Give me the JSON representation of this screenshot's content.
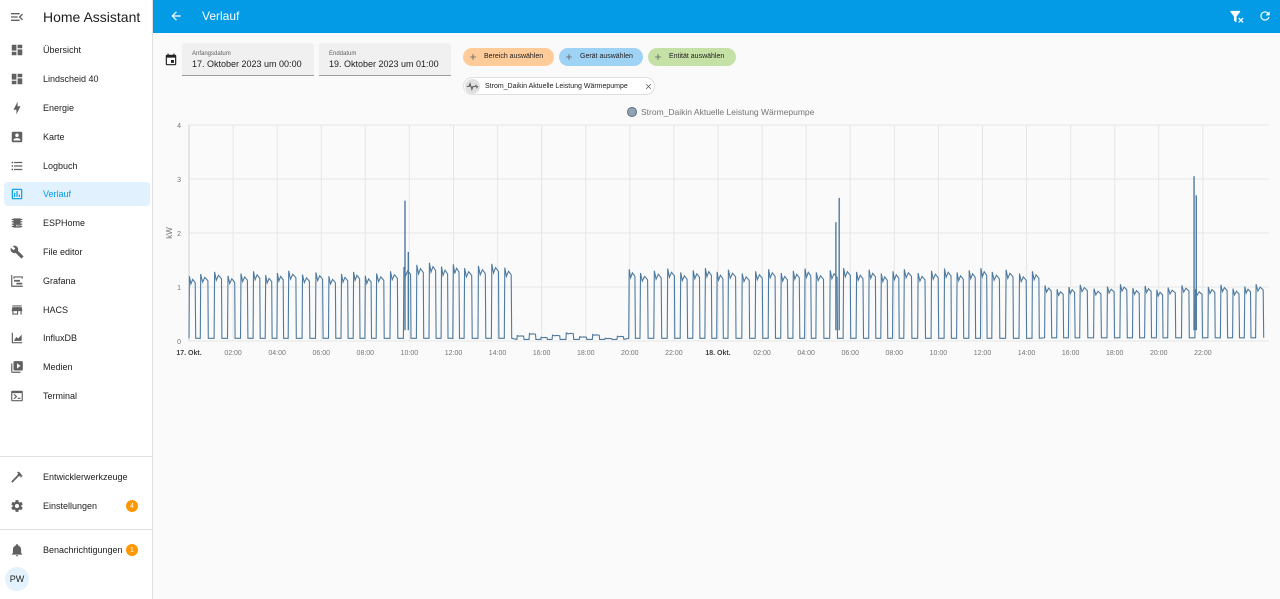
{
  "sidebar": {
    "title": "Home Assistant",
    "items": [
      {
        "label": "Übersicht",
        "icon": "dashboard-icon"
      },
      {
        "label": "Lindscheid 40",
        "icon": "dashboard-icon"
      },
      {
        "label": "Energie",
        "icon": "lightning-icon"
      },
      {
        "label": "Karte",
        "icon": "account-box-icon"
      },
      {
        "label": "Logbuch",
        "icon": "list-icon"
      },
      {
        "label": "Verlauf",
        "icon": "chart-box-icon",
        "active": true
      },
      {
        "label": "ESPHome",
        "icon": "chip-icon"
      },
      {
        "label": "File editor",
        "icon": "wrench-icon"
      },
      {
        "label": "Grafana",
        "icon": "chart-timeline-icon"
      },
      {
        "label": "HACS",
        "icon": "store-icon"
      },
      {
        "label": "InfluxDB",
        "icon": "chart-areaspline-icon"
      },
      {
        "label": "Medien",
        "icon": "play-box-icon"
      },
      {
        "label": "Terminal",
        "icon": "console-icon"
      }
    ],
    "dev_tools": {
      "label": "Entwicklerwerkzeuge",
      "icon": "hammer-icon"
    },
    "settings": {
      "label": "Einstellungen",
      "icon": "cog-icon",
      "badge": "4"
    },
    "notifications": {
      "label": "Benachrichtigungen",
      "icon": "bell-icon",
      "badge": "1"
    },
    "user_initials": "PW"
  },
  "header": {
    "title": "Verlauf",
    "primary_color": "#039be5"
  },
  "picker": {
    "start_label": "Anfangsdatum",
    "start_value": "17. Oktober 2023 um 00:00",
    "end_label": "Enddatum",
    "end_value": "19. Oktober 2023 um 01:00"
  },
  "chips": {
    "area": {
      "label": "Bereich auswählen",
      "color": "#ffcc99"
    },
    "device": {
      "label": "Gerät auswählen",
      "color": "#9fd3f5"
    },
    "entity": {
      "label": "Entität auswählen",
      "color": "#c5e1a5"
    },
    "selected_entity": "Strom_Daikin Aktuelle Leistung Wärmepumpe"
  },
  "chart_data": {
    "type": "line",
    "legend": "Strom_Daikin Aktuelle Leistung Wärmepumpe",
    "legend_position": "top-center",
    "series_name": "Strom_Daikin Aktuelle Leistung Wärmepumpe",
    "series_color": "#4f7aa0",
    "ylabel": "kW",
    "ylim": [
      0,
      4
    ],
    "yticks": [
      "0",
      "1",
      "2",
      "3",
      "4"
    ],
    "xlim": [
      "2023-10-17T00:00",
      "2023-10-19T01:00"
    ],
    "xticks": [
      {
        "label": "17. Okt.",
        "bold": true
      },
      {
        "label": "02:00"
      },
      {
        "label": "04:00"
      },
      {
        "label": "06:00"
      },
      {
        "label": "08:00"
      },
      {
        "label": "10:00"
      },
      {
        "label": "12:00"
      },
      {
        "label": "14:00"
      },
      {
        "label": "16:00"
      },
      {
        "label": "18:00"
      },
      {
        "label": "20:00"
      },
      {
        "label": "22:00"
      },
      {
        "label": "18. Okt.",
        "bold": true
      },
      {
        "label": "02:00"
      },
      {
        "label": "04:00"
      },
      {
        "label": "06:00"
      },
      {
        "label": "08:00"
      },
      {
        "label": "10:00"
      },
      {
        "label": "12:00"
      },
      {
        "label": "14:00"
      },
      {
        "label": "16:00"
      },
      {
        "label": "18:00"
      },
      {
        "label": "20:00"
      },
      {
        "label": "22:00"
      }
    ],
    "grid": true,
    "cycle_period_hours": 0.57,
    "cycle_on_fraction": 0.55,
    "segments": [
      {
        "start": 0.0,
        "end": 9.5,
        "peak": 1.25,
        "base": 0.05
      },
      {
        "start": 9.5,
        "end": 14.5,
        "peak": 1.4,
        "base": 0.05
      },
      {
        "start": 14.5,
        "end": 19.8,
        "peak": 0.1,
        "base": 0.03
      },
      {
        "start": 19.8,
        "end": 38.6,
        "peak": 1.3,
        "base": 0.05
      },
      {
        "start": 38.6,
        "end": 49.0,
        "peak": 1.0,
        "base": 0.06
      }
    ],
    "spikes": [
      {
        "x": 9.8,
        "y": 2.6
      },
      {
        "x": 9.95,
        "y": 1.65
      },
      {
        "x": 29.5,
        "y": 2.65
      },
      {
        "x": 29.35,
        "y": 2.2
      },
      {
        "x": 45.6,
        "y": 3.05
      },
      {
        "x": 45.7,
        "y": 2.7
      }
    ]
  }
}
